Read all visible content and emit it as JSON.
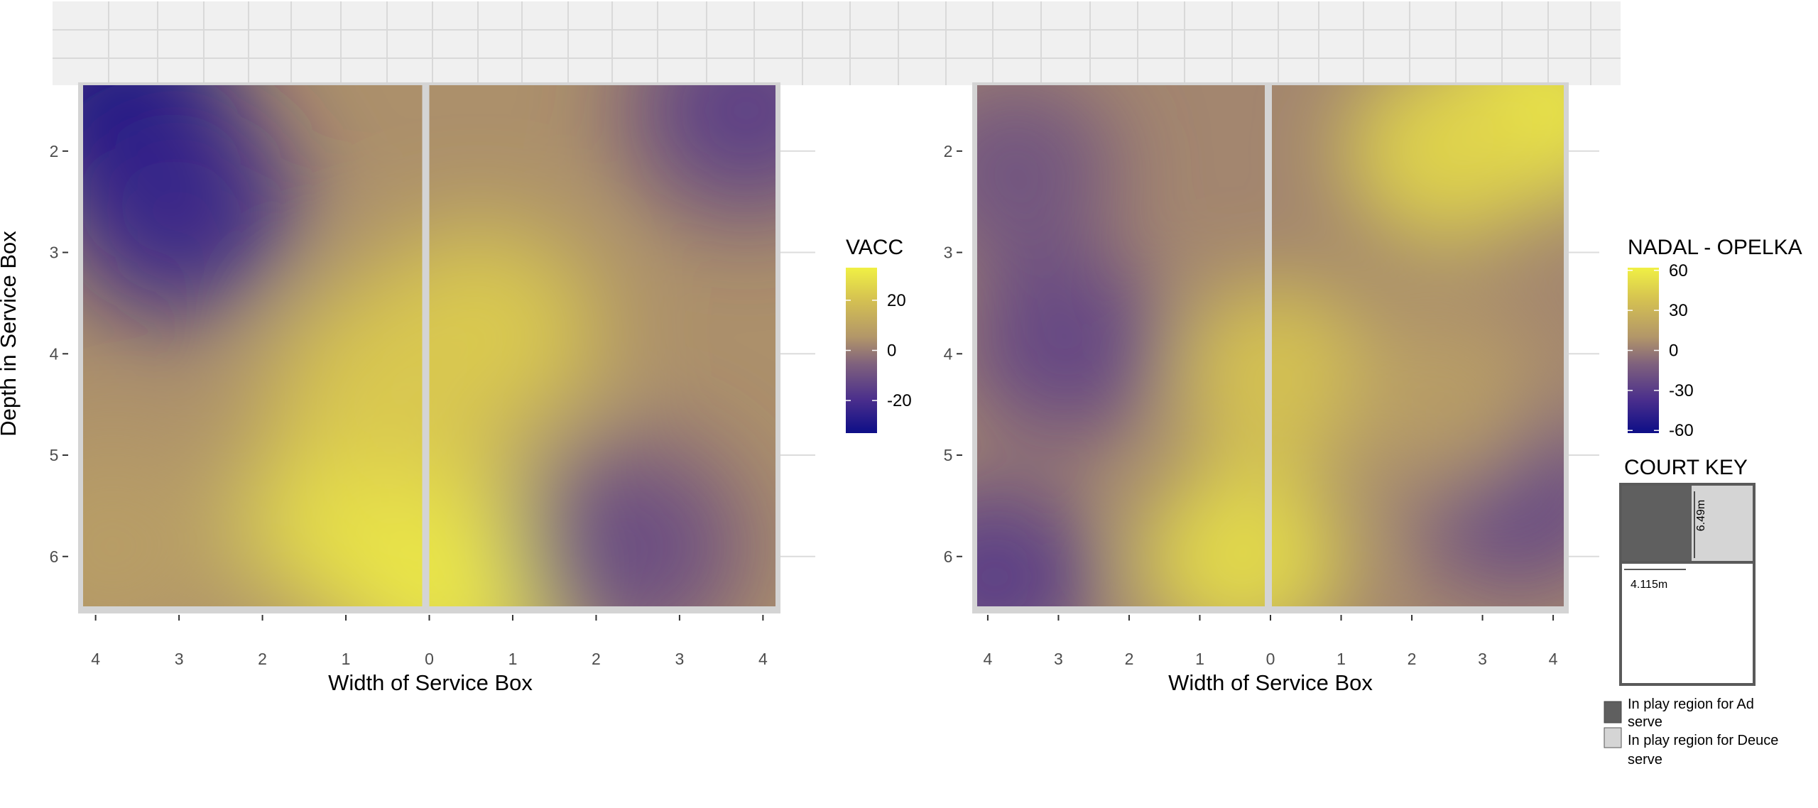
{
  "chart_data": [
    {
      "type": "heatmap",
      "xlabel": "Width of Service Box",
      "ylabel": "Depth in Service Box",
      "x_tick_labels": [
        "4",
        "3",
        "2",
        "1",
        "0",
        "1",
        "2",
        "3",
        "4"
      ],
      "y_ticks": [
        2,
        3,
        4,
        5,
        6
      ],
      "ylim": [
        1.35,
        6.45
      ],
      "legend": {
        "title": "VACC",
        "ticks": [
          "20",
          "0",
          "-20"
        ],
        "tick_values": [
          20,
          0,
          -20
        ],
        "range": [
          -33,
          33
        ],
        "placement": "right"
      },
      "hotspots": [
        {
          "x": 0.3,
          "y": 6.2,
          "value": 35
        },
        {
          "x": -0.8,
          "y": 5.6,
          "value": 30
        },
        {
          "x": 0.6,
          "y": 3.8,
          "value": 24
        },
        {
          "x": -0.5,
          "y": 4.3,
          "value": 22
        },
        {
          "x": -3.7,
          "y": 1.6,
          "value": -32
        },
        {
          "x": -3.0,
          "y": 2.6,
          "value": -24
        },
        {
          "x": 3.8,
          "y": 1.6,
          "value": -16
        },
        {
          "x": 2.4,
          "y": 5.9,
          "value": -12
        },
        {
          "x": -3.8,
          "y": 5.9,
          "value": 8
        }
      ]
    },
    {
      "type": "heatmap",
      "xlabel": "Width of Service Box",
      "ylabel": "",
      "x_tick_labels": [
        "4",
        "3",
        "2",
        "1",
        "0",
        "1",
        "2",
        "3",
        "4"
      ],
      "y_ticks": [
        2,
        3,
        4,
        5,
        6
      ],
      "ylim": [
        1.35,
        6.45
      ],
      "legend": {
        "title": "NADAL - OPELKA",
        "ticks": [
          "60",
          "30",
          "0",
          "-30",
          "-60"
        ],
        "tick_values": [
          60,
          30,
          0,
          -30,
          -60
        ],
        "range": [
          -62,
          62
        ],
        "placement": "right"
      },
      "hotspots": [
        {
          "x": 3.8,
          "y": 1.6,
          "value": 60
        },
        {
          "x": 2.5,
          "y": 2.0,
          "value": 48
        },
        {
          "x": -0.4,
          "y": 6.0,
          "value": 52
        },
        {
          "x": 0.1,
          "y": 4.2,
          "value": 40
        },
        {
          "x": -2.9,
          "y": 3.9,
          "value": -25
        },
        {
          "x": -3.9,
          "y": 6.2,
          "value": -30
        },
        {
          "x": -3.6,
          "y": 2.2,
          "value": -18
        },
        {
          "x": 3.5,
          "y": 5.4,
          "value": -24
        },
        {
          "x": 2.4,
          "y": 4.4,
          "value": 15
        }
      ]
    }
  ],
  "court_key": {
    "title": "COURT KEY",
    "depth_label": "6.49m",
    "width_label": "4.115m",
    "legend": [
      {
        "label_line1": "In play region for Ad",
        "label_line2": "serve",
        "color": "#5f5f5f"
      },
      {
        "label_line1": "In play region for Deuce",
        "label_line2": "serve",
        "color": "#d5d5d5"
      }
    ]
  }
}
